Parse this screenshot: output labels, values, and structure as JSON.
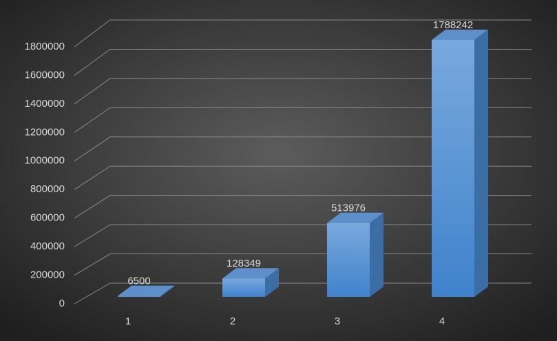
{
  "chart_data": {
    "type": "bar3d",
    "categories": [
      "1",
      "2",
      "3",
      "4"
    ],
    "values": [
      6500,
      128349,
      513976,
      1788242
    ],
    "color": "#5b9bd5",
    "ylim": [
      0,
      1800000
    ],
    "yticks": [
      0,
      200000,
      400000,
      600000,
      800000,
      1000000,
      1200000,
      1400000,
      1600000,
      1800000
    ],
    "grid": true
  }
}
